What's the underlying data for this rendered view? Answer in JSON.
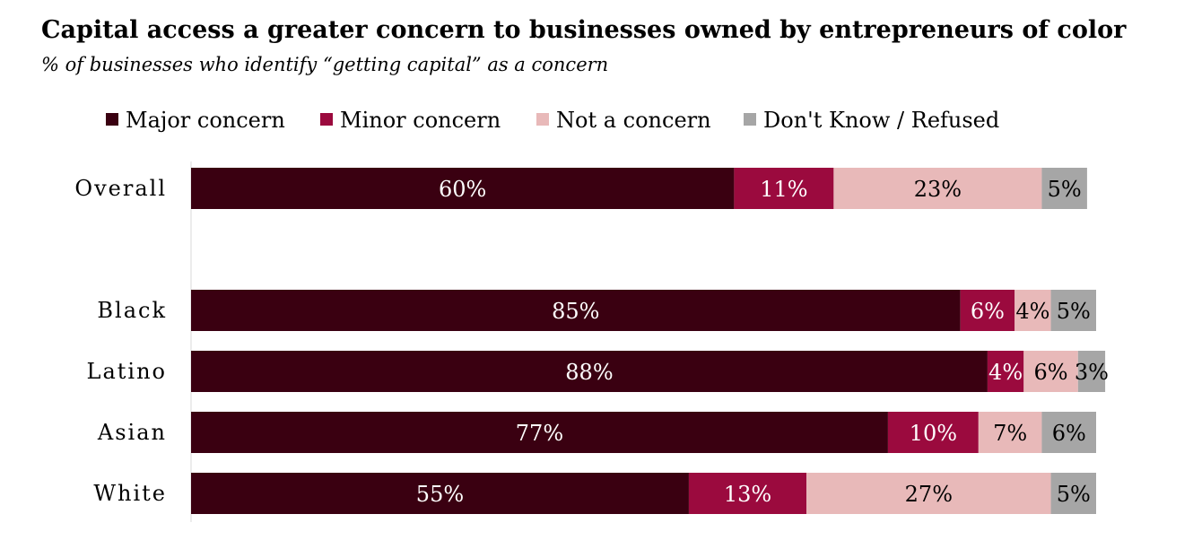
{
  "chart_data": {
    "type": "bar",
    "orientation": "horizontal",
    "stacked": true,
    "title": "Capital access a greater concern to businesses owned by entrepreneurs of color",
    "subtitle": "% of businesses who identify “getting capital” as a concern",
    "categories": [
      "Overall",
      "Black",
      "Latino",
      "Asian",
      "White"
    ],
    "series": [
      {
        "name": "Major concern",
        "color": "#3a0011",
        "label_color": "#ffffff",
        "values": [
          60,
          85,
          88,
          77,
          55
        ],
        "labels": [
          "60%",
          "85%",
          "88%",
          "77%",
          "55%"
        ]
      },
      {
        "name": "Minor concern",
        "color": "#9b0a3e",
        "label_color": "#ffffff",
        "values": [
          11,
          6,
          4,
          10,
          13
        ],
        "labels": [
          "11%",
          "6%",
          "4%",
          "10%",
          "13%"
        ]
      },
      {
        "name": "Not a concern",
        "color": "#e8b9b9",
        "label_color": "#000000",
        "values": [
          23,
          4,
          6,
          7,
          27
        ],
        "labels": [
          "23%",
          "4%",
          "6%",
          "7%",
          "27%"
        ]
      },
      {
        "name": "Don't Know / Refused",
        "color": "#a6a6a6",
        "label_color": "#000000",
        "values": [
          5,
          5,
          3,
          6,
          5
        ],
        "labels": [
          "5%",
          "5%",
          "3%",
          "6%",
          "5%"
        ]
      }
    ],
    "xlim": [
      0,
      100
    ],
    "legend_position": "top",
    "grid": false
  }
}
